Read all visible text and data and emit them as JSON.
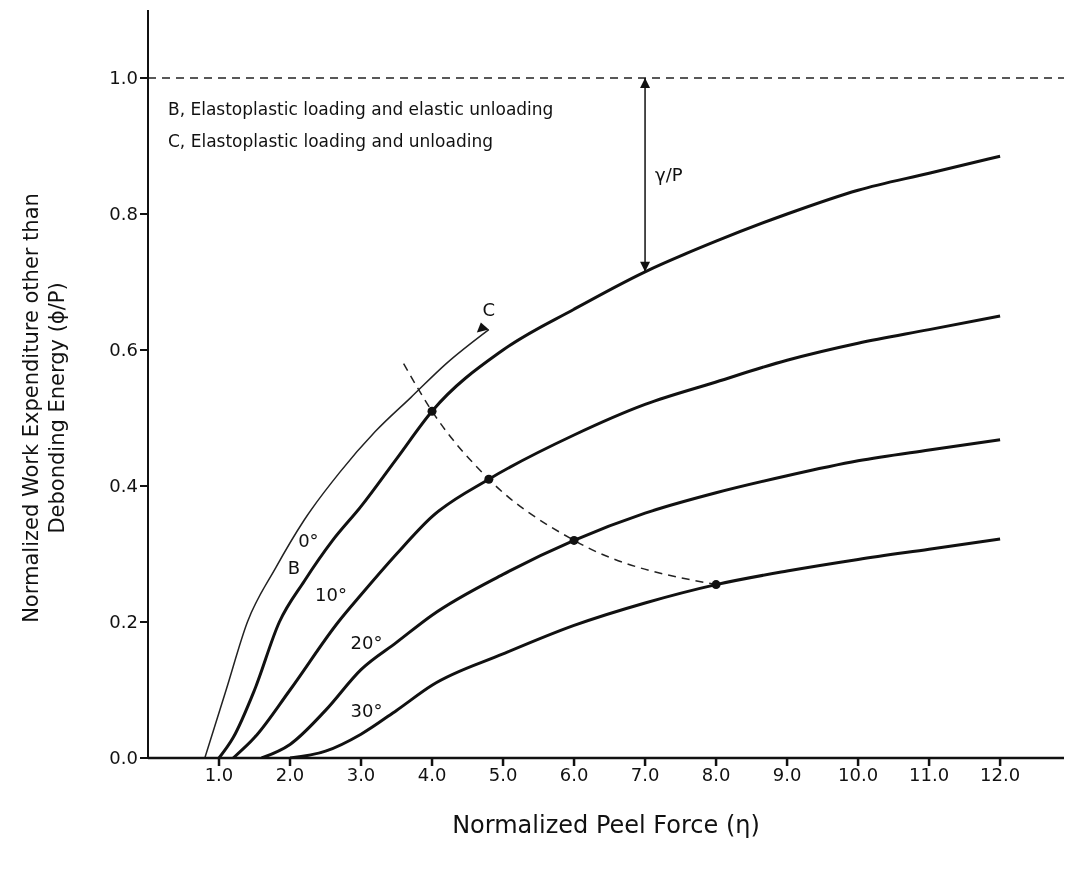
{
  "chart_data": {
    "type": "line",
    "xlabel": "Normalized Peel Force (η)",
    "ylabel": "Normalized Work Expenditure other than Debonding Energy (ϕ/P)",
    "xlim": [
      0,
      12.9
    ],
    "ylim": [
      0,
      1.1
    ],
    "xticks": [
      {
        "value": 1,
        "label": "1.0"
      },
      {
        "value": 2,
        "label": "2.0"
      },
      {
        "value": 3,
        "label": "3.0"
      },
      {
        "value": 4,
        "label": "4.0"
      },
      {
        "value": 5,
        "label": "5.0"
      },
      {
        "value": 6,
        "label": "6.0"
      },
      {
        "value": 7,
        "label": "7.0"
      },
      {
        "value": 8,
        "label": "8.0"
      },
      {
        "value": 9,
        "label": "9.0"
      },
      {
        "value": 10,
        "label": "10.0"
      },
      {
        "value": 11,
        "label": "11.0"
      },
      {
        "value": 12,
        "label": "12.0"
      }
    ],
    "yticks": [
      {
        "value": 0,
        "label": "0.0"
      },
      0.2,
      0.4,
      0.6,
      0.8,
      {
        "value": 1,
        "label": "1.0"
      }
    ],
    "grid": false,
    "marker": "none",
    "line_style": "solid",
    "series": [
      {
        "name": "0°",
        "color": "#111111",
        "x": [
          1.0,
          1.2,
          1.5,
          1.85,
          2.2,
          2.6,
          3.0,
          3.5,
          4.0,
          5.0,
          6.0,
          7.0,
          8.0,
          9.0,
          10.0,
          11.0,
          12.0
        ],
        "values": [
          0,
          0.03,
          0.1,
          0.2,
          0.26,
          0.32,
          0.37,
          0.44,
          0.51,
          0.6,
          0.66,
          0.715,
          0.76,
          0.8,
          0.835,
          0.86,
          0.885
        ]
      },
      {
        "name": "10°",
        "color": "#111111",
        "x": [
          1.2,
          1.5,
          2.0,
          2.68,
          3.0,
          3.5,
          4.0,
          4.8,
          6.0,
          7.0,
          8.0,
          9.0,
          10.0,
          11.0,
          12.0
        ],
        "values": [
          0,
          0.03,
          0.1,
          0.2,
          0.24,
          0.3,
          0.355,
          0.41,
          0.475,
          0.52,
          0.553,
          0.585,
          0.61,
          0.63,
          0.65
        ]
      },
      {
        "name": "20°",
        "color": "#111111",
        "x": [
          1.6,
          2.0,
          2.5,
          3.0,
          3.5,
          4.0,
          5.0,
          6.0,
          7.0,
          8.0,
          9.0,
          10.0,
          11.0,
          12.0
        ],
        "values": [
          0,
          0.02,
          0.07,
          0.13,
          0.17,
          0.21,
          0.27,
          0.32,
          0.36,
          0.39,
          0.415,
          0.437,
          0.453,
          0.468
        ]
      },
      {
        "name": "30°",
        "color": "#111111",
        "x": [
          2.0,
          2.5,
          3.0,
          3.5,
          4.0,
          5.0,
          6.0,
          7.0,
          8.0,
          9.0,
          10.0,
          11.0,
          12.0
        ],
        "values": [
          0,
          0.01,
          0.035,
          0.07,
          0.107,
          0.153,
          0.195,
          0.228,
          0.255,
          0.275,
          0.292,
          0.307,
          0.322
        ]
      },
      {
        "color": "#222222",
        "x": [
          0.8,
          1.1,
          1.4,
          1.8,
          2.2,
          2.7,
          3.2,
          3.7,
          4.2,
          4.8
        ],
        "values": [
          0,
          0.1,
          0.2,
          0.28,
          0.35,
          0.42,
          0.48,
          0.53,
          0.58,
          0.63
        ]
      },
      {
        "color": "#222222",
        "line_style": "dashed",
        "x": [
          3.6,
          4.0,
          4.8,
          6.0,
          8.0
        ],
        "values": [
          0.58,
          0.51,
          0.41,
          0.32,
          0.255
        ]
      },
      {
        "type": "scatter",
        "marker": "circle",
        "color": "#111111",
        "x": [
          4.0,
          4.8,
          6.0,
          8.0
        ],
        "values": [
          0.51,
          0.41,
          0.32,
          0.255
        ]
      }
    ],
    "ref_lines": [
      {
        "axis": "y",
        "value": 1.0,
        "line_style": "dashed",
        "color": "#222222"
      }
    ],
    "annotations": [
      "B, Elastoplastic loading and elastic unloading",
      "C, Elastoplastic loading and unloading",
      "γ/P",
      "B",
      "C"
    ]
  }
}
